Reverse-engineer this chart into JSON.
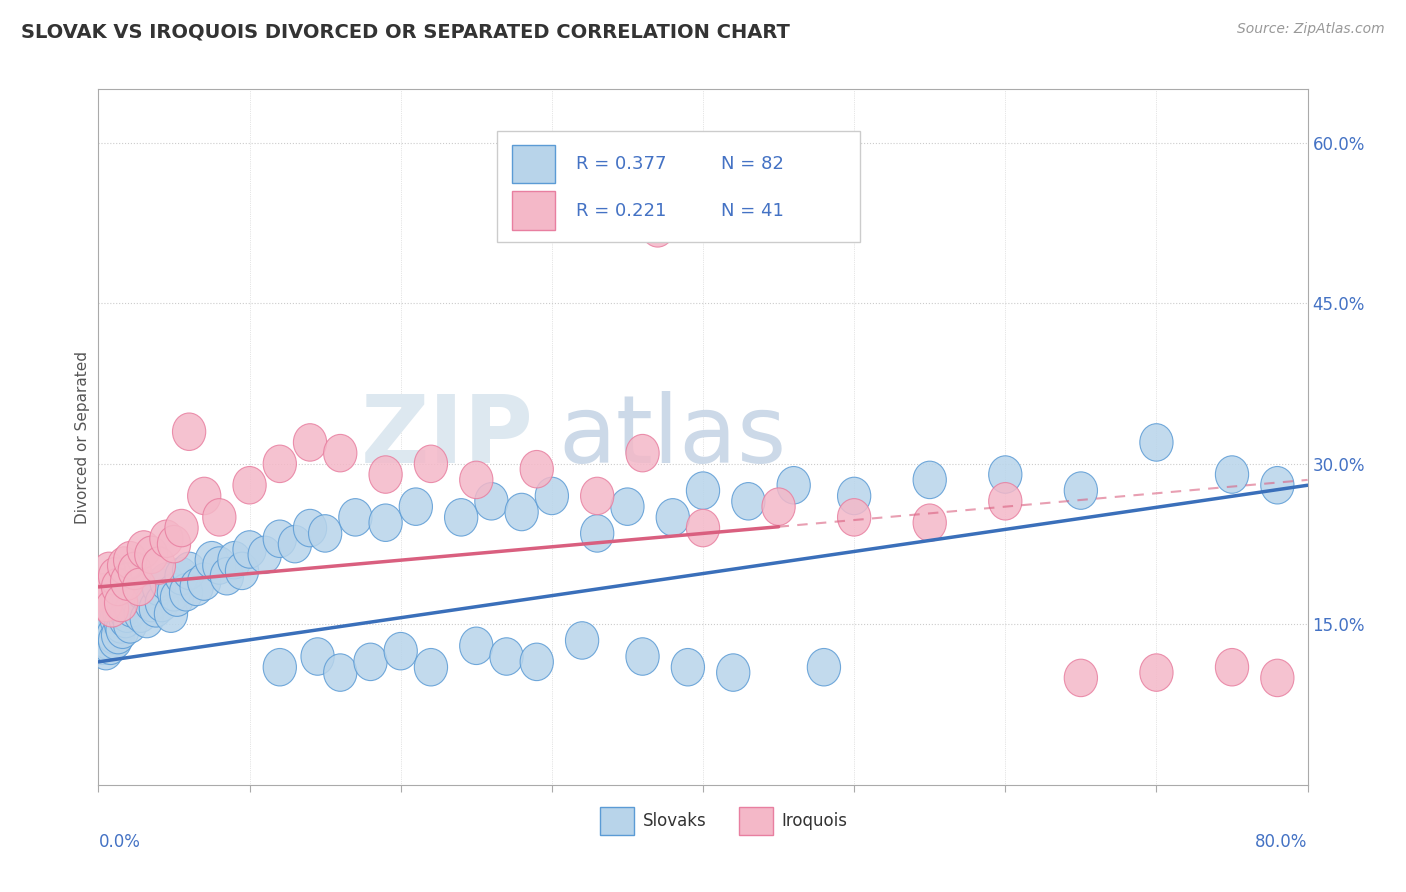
{
  "title": "SLOVAK VS IROQUOIS DIVORCED OR SEPARATED CORRELATION CHART",
  "source": "Source: ZipAtlas.com",
  "ylabel": "Divorced or Separated",
  "xlim": [
    0.0,
    80.0
  ],
  "ylim": [
    0.0,
    65.0
  ],
  "yticks": [
    15.0,
    30.0,
    45.0,
    60.0
  ],
  "legend_r1": "R = 0.377",
  "legend_n1": "N = 82",
  "legend_r2": "R = 0.221",
  "legend_n2": "N = 41",
  "blue_face": "#b8d4ea",
  "blue_edge": "#5b9bd5",
  "pink_face": "#f4b8c8",
  "pink_edge": "#e87fa0",
  "blue_line": "#3a6fba",
  "pink_line": "#d95f7f",
  "grid_color": "#cccccc",
  "axis_color": "#aaaaaa",
  "text_color": "#4472c4",
  "title_color": "#333333",
  "source_color": "#999999",
  "watermark_zip_color": "#dde8f0",
  "watermark_atlas_color": "#ccd9e8",
  "sk_x": [
    0.3,
    0.4,
    0.5,
    0.6,
    0.7,
    0.8,
    0.9,
    1.0,
    1.1,
    1.2,
    1.3,
    1.4,
    1.5,
    1.6,
    1.7,
    1.8,
    1.9,
    2.0,
    2.1,
    2.2,
    2.5,
    2.8,
    3.0,
    3.2,
    3.5,
    3.8,
    4.0,
    4.2,
    4.5,
    4.8,
    5.0,
    5.2,
    5.5,
    5.8,
    6.0,
    6.5,
    7.0,
    7.5,
    8.0,
    8.5,
    9.0,
    9.5,
    10.0,
    11.0,
    12.0,
    13.0,
    14.0,
    15.0,
    17.0,
    19.0,
    21.0,
    24.0,
    26.0,
    28.0,
    30.0,
    33.0,
    35.0,
    38.0,
    40.0,
    43.0,
    46.0,
    50.0,
    55.0,
    60.0,
    65.0,
    70.0,
    75.0,
    78.0,
    12.0,
    14.5,
    16.0,
    18.0,
    20.0,
    22.0,
    25.0,
    27.0,
    29.0,
    32.0,
    36.0,
    39.0,
    42.0,
    48.0
  ],
  "sk_y": [
    13.0,
    14.0,
    12.5,
    13.5,
    14.5,
    13.0,
    15.0,
    14.0,
    13.5,
    15.5,
    14.0,
    16.0,
    15.0,
    14.5,
    16.5,
    15.5,
    16.0,
    17.0,
    15.0,
    16.5,
    17.5,
    16.0,
    18.0,
    15.5,
    17.0,
    16.5,
    18.5,
    17.0,
    19.0,
    16.0,
    18.0,
    17.5,
    19.5,
    18.0,
    20.0,
    18.5,
    19.0,
    21.0,
    20.5,
    19.5,
    21.0,
    20.0,
    22.0,
    21.5,
    23.0,
    22.5,
    24.0,
    23.5,
    25.0,
    24.5,
    26.0,
    25.0,
    26.5,
    25.5,
    27.0,
    23.5,
    26.0,
    25.0,
    27.5,
    26.5,
    28.0,
    27.0,
    28.5,
    29.0,
    27.5,
    32.0,
    29.0,
    28.0,
    11.0,
    12.0,
    10.5,
    11.5,
    12.5,
    11.0,
    13.0,
    12.0,
    11.5,
    13.5,
    12.0,
    11.0,
    10.5,
    11.0
  ],
  "iq_x": [
    0.3,
    0.5,
    0.7,
    0.9,
    1.1,
    1.3,
    1.5,
    1.7,
    1.9,
    2.1,
    2.4,
    2.7,
    3.0,
    3.5,
    4.0,
    4.5,
    5.0,
    5.5,
    6.0,
    7.0,
    8.0,
    10.0,
    12.0,
    14.0,
    16.0,
    19.0,
    22.0,
    25.0,
    29.0,
    33.0,
    36.0,
    40.0,
    45.0,
    50.0,
    55.0,
    60.0,
    65.0,
    70.0,
    75.0,
    78.0,
    37.0
  ],
  "iq_y": [
    18.0,
    17.0,
    20.0,
    16.5,
    19.5,
    18.5,
    17.0,
    20.5,
    19.0,
    21.0,
    20.0,
    18.5,
    22.0,
    21.5,
    20.5,
    23.0,
    22.5,
    24.0,
    33.0,
    27.0,
    25.0,
    28.0,
    30.0,
    32.0,
    31.0,
    29.0,
    30.0,
    28.5,
    29.5,
    27.0,
    31.0,
    24.0,
    26.0,
    25.0,
    24.5,
    26.5,
    10.0,
    10.5,
    11.0,
    10.0,
    52.0
  ],
  "sk_trend_x": [
    0.0,
    80.0
  ],
  "sk_trend_y": [
    11.5,
    28.0
  ],
  "iq_trend_x": [
    0.0,
    80.0
  ],
  "iq_trend_y": [
    18.5,
    28.5
  ]
}
